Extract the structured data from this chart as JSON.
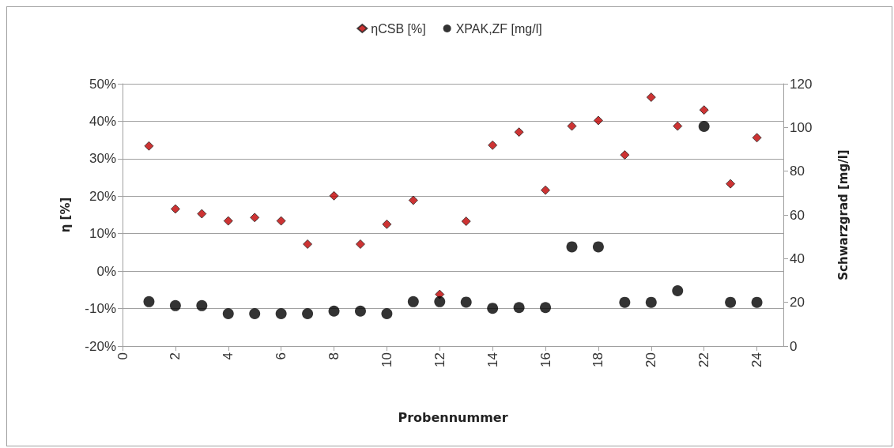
{
  "chart_data": {
    "type": "scatter",
    "xlabel": "Probennummer",
    "ylabel": "η [%]",
    "y2label": "Schwarzgrad [mg/l]",
    "series": [
      {
        "name": "ηCSB [%]",
        "color": "#c00000",
        "marker": "diamond",
        "x": [
          1,
          2,
          3,
          4,
          5,
          6,
          7,
          8,
          9,
          10,
          11,
          12,
          13,
          14,
          15,
          16,
          17,
          18,
          19,
          20,
          21,
          22,
          23,
          24
        ],
        "values": [
          33.4,
          16.6,
          15.3,
          13.4,
          14.3,
          13.4,
          7.2,
          20.1,
          7.2,
          12.5,
          18.9,
          -6.2,
          13.3,
          33.6,
          37.1,
          21.6,
          38.7,
          40.2,
          31.0,
          46.4,
          38.7,
          43.0,
          23.3,
          35.6
        ]
      },
      {
        "name": "XPAK,ZF [mg/l]",
        "color": "#000000",
        "marker": "circle",
        "axis": "y2",
        "x": [
          1,
          2,
          3,
          4,
          5,
          6,
          7,
          8,
          9,
          10,
          11,
          12,
          13,
          14,
          15,
          16,
          17,
          18,
          19,
          20,
          21,
          22,
          23,
          24
        ],
        "values": [
          20.3,
          18.5,
          18.5,
          14.8,
          14.8,
          14.8,
          14.8,
          16.0,
          16.0,
          14.8,
          20.3,
          20.3,
          20.1,
          17.3,
          17.6,
          17.6,
          45.4,
          45.4,
          20.0,
          20.0,
          25.3,
          100.5,
          20.0,
          20.0
        ]
      }
    ],
    "xlim": [
      0,
      25
    ],
    "xticks": [
      0,
      2,
      4,
      6,
      8,
      10,
      12,
      14,
      16,
      18,
      20,
      22,
      24
    ],
    "ylim": [
      -20,
      50
    ],
    "yticks": [
      {
        "value": -20,
        "label": "-20%"
      },
      {
        "value": -10,
        "label": "-10%"
      },
      {
        "value": 0,
        "label": "0%"
      },
      {
        "value": 10,
        "label": "10%"
      },
      {
        "value": 20,
        "label": "20%"
      },
      {
        "value": 30,
        "label": "30%"
      },
      {
        "value": 40,
        "label": "40%"
      },
      {
        "value": 50,
        "label": "50%"
      }
    ],
    "y2lim": [
      0,
      120
    ],
    "y2ticks": [
      0,
      20,
      40,
      60,
      80,
      100,
      120
    ],
    "grid": "y",
    "legend": "top"
  }
}
